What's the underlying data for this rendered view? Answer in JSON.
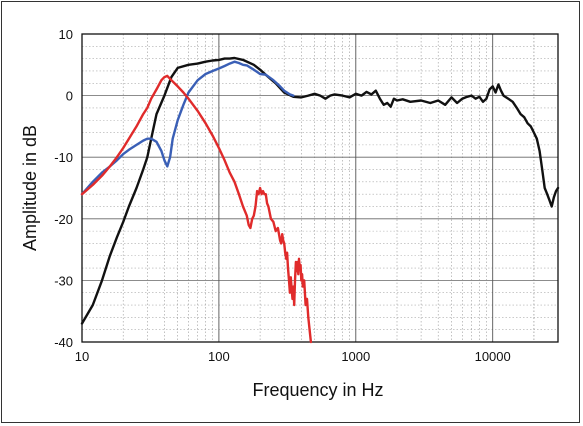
{
  "chart_data": {
    "type": "line",
    "xlabel": "Frequency in Hz",
    "ylabel": "Amplitude in dB",
    "xscale": "log",
    "xlim": [
      10,
      30000
    ],
    "ylim": [
      -40,
      10
    ],
    "x_ticks": [
      10,
      100,
      1000,
      10000
    ],
    "x_tick_labels": [
      "10",
      "100",
      "1000",
      "10000"
    ],
    "y_ticks": [
      10,
      0,
      -10,
      -20,
      -30,
      -40
    ],
    "y_tick_labels": [
      "10",
      "0",
      "-10",
      "-20",
      "-30",
      "-40"
    ],
    "grid": true,
    "legend": "none",
    "series": [
      {
        "color": "#111111",
        "points": [
          [
            10,
            -37
          ],
          [
            12,
            -34
          ],
          [
            14,
            -30
          ],
          [
            16,
            -26
          ],
          [
            18,
            -23
          ],
          [
            20,
            -20.5
          ],
          [
            22,
            -18
          ],
          [
            25,
            -15
          ],
          [
            28,
            -12
          ],
          [
            30,
            -10
          ],
          [
            32,
            -7
          ],
          [
            35,
            -3
          ],
          [
            40,
            0
          ],
          [
            45,
            3
          ],
          [
            50,
            4.5
          ],
          [
            60,
            5
          ],
          [
            70,
            5.2
          ],
          [
            80,
            5.5
          ],
          [
            90,
            5.7
          ],
          [
            100,
            5.8
          ],
          [
            110,
            6
          ],
          [
            120,
            6
          ],
          [
            130,
            6.1
          ],
          [
            150,
            5.8
          ],
          [
            180,
            5
          ],
          [
            200,
            4.2
          ],
          [
            230,
            3
          ],
          [
            260,
            2
          ],
          [
            300,
            0.5
          ],
          [
            350,
            -0.2
          ],
          [
            400,
            -0.3
          ],
          [
            450,
            0
          ],
          [
            500,
            0.3
          ],
          [
            550,
            0
          ],
          [
            600,
            -0.5
          ],
          [
            650,
            0
          ],
          [
            700,
            0.2
          ],
          [
            800,
            0
          ],
          [
            900,
            -0.3
          ],
          [
            1000,
            0.3
          ],
          [
            1100,
            0
          ],
          [
            1200,
            0.6
          ],
          [
            1300,
            0.2
          ],
          [
            1400,
            0.8
          ],
          [
            1500,
            -0.5
          ],
          [
            1600,
            -1.5
          ],
          [
            1700,
            -1.2
          ],
          [
            1800,
            -1.8
          ],
          [
            1900,
            -0.5
          ],
          [
            2000,
            -0.8
          ],
          [
            2200,
            -0.6
          ],
          [
            2500,
            -1
          ],
          [
            3000,
            -0.8
          ],
          [
            3500,
            -1.2
          ],
          [
            4000,
            -0.8
          ],
          [
            4500,
            -1.5
          ],
          [
            5000,
            -0.3
          ],
          [
            5500,
            -1.2
          ],
          [
            6000,
            -0.5
          ],
          [
            6500,
            -0.2
          ],
          [
            7000,
            0
          ],
          [
            7500,
            -0.5
          ],
          [
            8000,
            -0.2
          ],
          [
            8500,
            -1
          ],
          [
            9000,
            -0.5
          ],
          [
            9500,
            1
          ],
          [
            10000,
            1.5
          ],
          [
            10500,
            0.5
          ],
          [
            11000,
            1.8
          ],
          [
            11500,
            0.8
          ],
          [
            12000,
            0
          ],
          [
            13000,
            -0.5
          ],
          [
            14000,
            -1
          ],
          [
            15000,
            -2
          ],
          [
            16000,
            -3
          ],
          [
            17000,
            -3.5
          ],
          [
            18000,
            -4.5
          ],
          [
            19000,
            -5
          ],
          [
            20000,
            -6
          ],
          [
            21000,
            -7
          ],
          [
            22000,
            -9
          ],
          [
            23000,
            -12
          ],
          [
            24000,
            -15
          ],
          [
            25000,
            -16
          ],
          [
            26000,
            -17
          ],
          [
            27000,
            -18
          ],
          [
            28000,
            -16.5
          ],
          [
            29000,
            -15.5
          ],
          [
            30000,
            -15
          ]
        ]
      },
      {
        "color": "#3a5fb6",
        "points": [
          [
            10,
            -16
          ],
          [
            12,
            -14
          ],
          [
            14,
            -12.5
          ],
          [
            16,
            -11.5
          ],
          [
            18,
            -10.5
          ],
          [
            20,
            -9.5
          ],
          [
            22,
            -8.8
          ],
          [
            25,
            -8
          ],
          [
            28,
            -7.3
          ],
          [
            30,
            -7
          ],
          [
            32,
            -7
          ],
          [
            35,
            -7.5
          ],
          [
            38,
            -9
          ],
          [
            40,
            -10.5
          ],
          [
            42,
            -11.5
          ],
          [
            44,
            -10
          ],
          [
            46,
            -7
          ],
          [
            50,
            -4
          ],
          [
            55,
            -1.5
          ],
          [
            60,
            0.5
          ],
          [
            70,
            2.5
          ],
          [
            80,
            3.5
          ],
          [
            90,
            4
          ],
          [
            100,
            4.4
          ],
          [
            110,
            4.8
          ],
          [
            120,
            5.2
          ],
          [
            130,
            5.5
          ],
          [
            140,
            5.3
          ],
          [
            150,
            5
          ],
          [
            160,
            4.9
          ],
          [
            180,
            4.2
          ],
          [
            200,
            3.5
          ],
          [
            220,
            3.4
          ],
          [
            250,
            2.5
          ],
          [
            280,
            1.5
          ],
          [
            300,
            0.8
          ],
          [
            330,
            0.2
          ],
          [
            350,
            0
          ]
        ]
      },
      {
        "color": "#e02b2b",
        "points": [
          [
            10,
            -16
          ],
          [
            12,
            -14.5
          ],
          [
            14,
            -13
          ],
          [
            16,
            -11.5
          ],
          [
            18,
            -10
          ],
          [
            20,
            -8.5
          ],
          [
            22,
            -7
          ],
          [
            25,
            -5
          ],
          [
            28,
            -3
          ],
          [
            30,
            -2
          ],
          [
            32,
            -0.5
          ],
          [
            35,
            1
          ],
          [
            38,
            2.5
          ],
          [
            40,
            3
          ],
          [
            42,
            3.2
          ],
          [
            45,
            2.5
          ],
          [
            50,
            1.5
          ],
          [
            55,
            0.5
          ],
          [
            60,
            -0.5
          ],
          [
            70,
            -2.5
          ],
          [
            80,
            -4.5
          ],
          [
            90,
            -6.5
          ],
          [
            100,
            -8.5
          ],
          [
            110,
            -10.5
          ],
          [
            120,
            -12.5
          ],
          [
            130,
            -14
          ],
          [
            140,
            -16
          ],
          [
            150,
            -18
          ],
          [
            160,
            -19.5
          ],
          [
            165,
            -21
          ],
          [
            170,
            -21.5
          ],
          [
            175,
            -20
          ],
          [
            180,
            -19.5
          ],
          [
            185,
            -18
          ],
          [
            190,
            -15.5
          ],
          [
            195,
            -16
          ],
          [
            200,
            -15
          ],
          [
            205,
            -16
          ],
          [
            210,
            -15.5
          ],
          [
            215,
            -16
          ],
          [
            220,
            -16
          ],
          [
            225,
            -17.5
          ],
          [
            230,
            -18
          ],
          [
            240,
            -20
          ],
          [
            250,
            -20.5
          ],
          [
            260,
            -22
          ],
          [
            270,
            -21.5
          ],
          [
            280,
            -23.5
          ],
          [
            285,
            -24
          ],
          [
            290,
            -22.5
          ],
          [
            295,
            -23.5
          ],
          [
            300,
            -24
          ],
          [
            305,
            -25.5
          ],
          [
            310,
            -26.5
          ],
          [
            315,
            -25.5
          ],
          [
            320,
            -28
          ],
          [
            325,
            -30
          ],
          [
            330,
            -32
          ],
          [
            335,
            -29.5
          ],
          [
            340,
            -31.5
          ],
          [
            345,
            -33
          ],
          [
            350,
            -31
          ],
          [
            355,
            -34
          ],
          [
            360,
            -30
          ],
          [
            365,
            -27
          ],
          [
            370,
            -28.5
          ],
          [
            375,
            -27
          ],
          [
            380,
            -29
          ],
          [
            385,
            -26.5
          ],
          [
            390,
            -28
          ],
          [
            395,
            -27.5
          ],
          [
            400,
            -30
          ],
          [
            405,
            -29
          ],
          [
            410,
            -31
          ],
          [
            420,
            -30
          ],
          [
            430,
            -34
          ],
          [
            440,
            -33
          ],
          [
            450,
            -36
          ],
          [
            460,
            -38
          ],
          [
            470,
            -40
          ]
        ]
      }
    ]
  }
}
